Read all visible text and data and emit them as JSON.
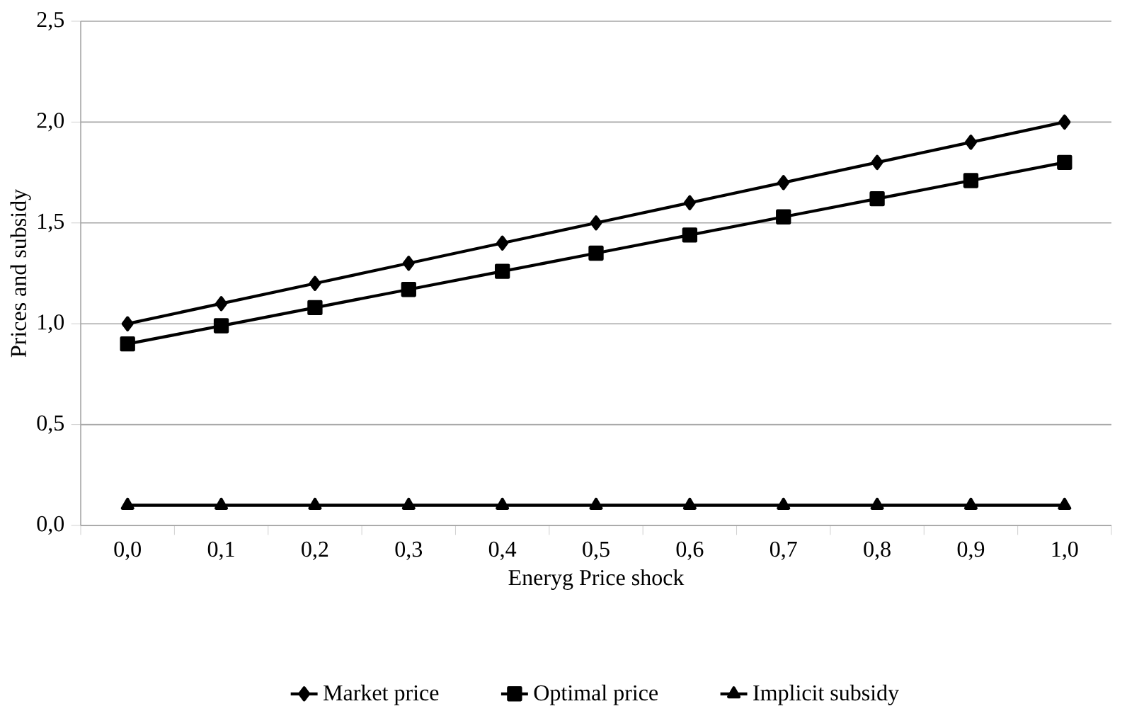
{
  "chart_data": {
    "type": "line",
    "xlabel": "Eneryg Price shock",
    "ylabel": "Prices and subsidy",
    "categories": [
      "0,0",
      "0,1",
      "0,2",
      "0,3",
      "0,4",
      "0,5",
      "0,6",
      "0,7",
      "0,8",
      "0,9",
      "1,0"
    ],
    "series": [
      {
        "name": "Market price",
        "color": "#000000",
        "marker": "diamond",
        "values": [
          1.0,
          1.1,
          1.2,
          1.3,
          1.4,
          1.5,
          1.6,
          1.7,
          1.8,
          1.9,
          2.0
        ]
      },
      {
        "name": "Optimal price",
        "color": "#000000",
        "marker": "square",
        "values": [
          0.9,
          0.99,
          1.08,
          1.17,
          1.26,
          1.35,
          1.44,
          1.53,
          1.62,
          1.71,
          1.8
        ]
      },
      {
        "name": "Implicit subsidy",
        "color": "#000000",
        "marker": "triangle",
        "values": [
          0.1,
          0.1,
          0.1,
          0.1,
          0.1,
          0.1,
          0.1,
          0.1,
          0.1,
          0.1,
          0.1
        ]
      }
    ],
    "ylim": [
      0,
      2.5
    ],
    "yticks": [
      {
        "value": 0,
        "label": "0,0"
      },
      {
        "value": 0.5,
        "label": "0,5"
      },
      {
        "value": 1.0,
        "label": "1,0"
      },
      {
        "value": 1.5,
        "label": "1,5"
      },
      {
        "value": 2.0,
        "label": "2,0"
      },
      {
        "value": 2.5,
        "label": "2,5"
      }
    ],
    "grid": "y",
    "legend": "bottom",
    "line_style": "solid"
  }
}
